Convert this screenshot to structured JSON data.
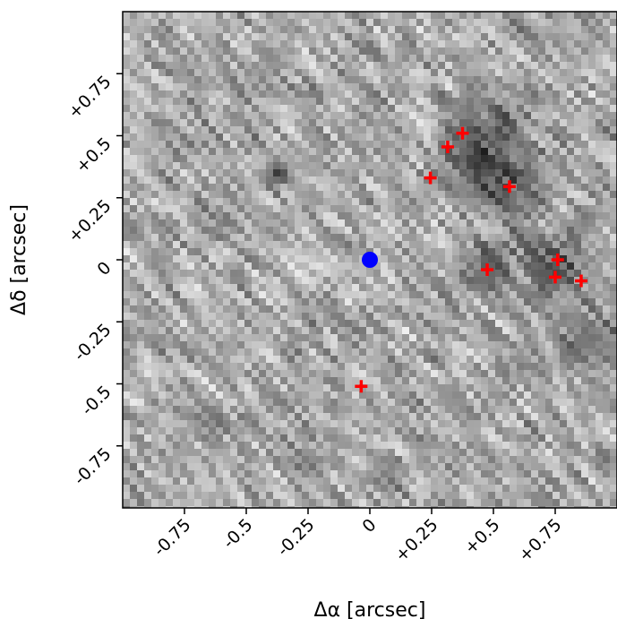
{
  "chart_data": {
    "type": "scatter",
    "background": "grayscale-noise-image",
    "xlabel": "Δα [arcsec]",
    "ylabel": "Δδ [arcsec]",
    "xlim": [
      -1.0,
      1.0
    ],
    "ylim": [
      -1.0,
      1.0
    ],
    "x_ticks": [
      {
        "value": -0.75,
        "label": "-0.75"
      },
      {
        "value": -0.5,
        "label": "-0.5"
      },
      {
        "value": -0.25,
        "label": "-0.25"
      },
      {
        "value": 0,
        "label": "0"
      },
      {
        "value": 0.25,
        "label": "+0.25"
      },
      {
        "value": 0.5,
        "label": "+0.5"
      },
      {
        "value": 0.75,
        "label": "+0.75"
      }
    ],
    "y_ticks": [
      {
        "value": 0.75,
        "label": "+0.75"
      },
      {
        "value": 0.5,
        "label": "+0.5"
      },
      {
        "value": 0.25,
        "label": "+0.25"
      },
      {
        "value": 0,
        "label": "0"
      },
      {
        "value": -0.25,
        "label": "-0.25"
      },
      {
        "value": -0.5,
        "label": "-0.5"
      },
      {
        "value": -0.75,
        "label": "-0.75"
      }
    ],
    "center_marker": {
      "x": 0.0,
      "y": 0.0,
      "color": "#0000ff",
      "shape": "circle"
    },
    "sources": {
      "color": "#ff0000",
      "shape": "plus",
      "points": [
        {
          "x": 0.375,
          "y": 0.51
        },
        {
          "x": 0.315,
          "y": 0.455
        },
        {
          "x": 0.245,
          "y": 0.33
        },
        {
          "x": 0.565,
          "y": 0.295
        },
        {
          "x": 0.475,
          "y": -0.04
        },
        {
          "x": 0.76,
          "y": 0.0
        },
        {
          "x": 0.75,
          "y": -0.07
        },
        {
          "x": 0.855,
          "y": -0.085
        },
        {
          "x": -0.035,
          "y": -0.51
        }
      ]
    },
    "dark_regions": [
      {
        "x": 0.48,
        "y": 0.45,
        "r": 0.16,
        "strength": 0.55
      },
      {
        "x": 0.55,
        "y": 0.28,
        "r": 0.14,
        "strength": 0.35
      },
      {
        "x": 0.47,
        "y": -0.04,
        "r": 0.1,
        "strength": 0.55
      },
      {
        "x": 0.75,
        "y": -0.02,
        "r": 0.13,
        "strength": 0.5
      },
      {
        "x": 0.88,
        "y": -0.3,
        "r": 0.15,
        "strength": 0.35
      },
      {
        "x": -0.38,
        "y": 0.33,
        "r": 0.04,
        "strength": 0.5
      }
    ],
    "grid": false,
    "legend": "none"
  }
}
